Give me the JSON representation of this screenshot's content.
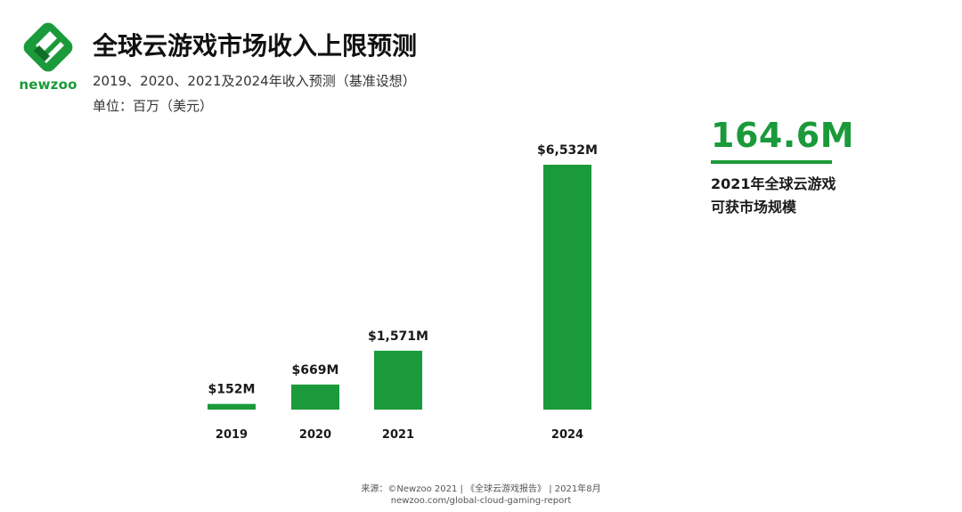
{
  "brand": {
    "name": "newzoo",
    "color": "#1a9a3a"
  },
  "header": {
    "title": "全球云游戏市场收入上限预测",
    "subtitle": "2019、2020、2021及2024年收入预测（基准设想）",
    "unit": "单位：百万（美元）"
  },
  "chart_data": {
    "type": "bar",
    "title": "全球云游戏市场收入上限预测",
    "subtitle": "2019、2020、2021及2024年收入预测（基准设想）",
    "ylabel": "单位：百万（美元）",
    "xlabel": "",
    "categories": [
      "2019",
      "2020",
      "2021",
      "2024"
    ],
    "values": [
      152,
      669,
      1571,
      6532
    ],
    "value_labels": [
      "$152M",
      "$669M",
      "$1,571M",
      "$6,532M"
    ],
    "ylim": [
      0,
      6532
    ],
    "grid": false,
    "legend": "none",
    "bar_color": "#1a9a3a"
  },
  "callout": {
    "value": "164.6M",
    "line1": "2021年全球云游戏",
    "line2": "可获市场规模"
  },
  "footer": {
    "source": "来源：©Newzoo 2021 | 《全球云游戏报告》 | 2021年8月",
    "url": "newzoo.com/global-cloud-gaming-report"
  }
}
